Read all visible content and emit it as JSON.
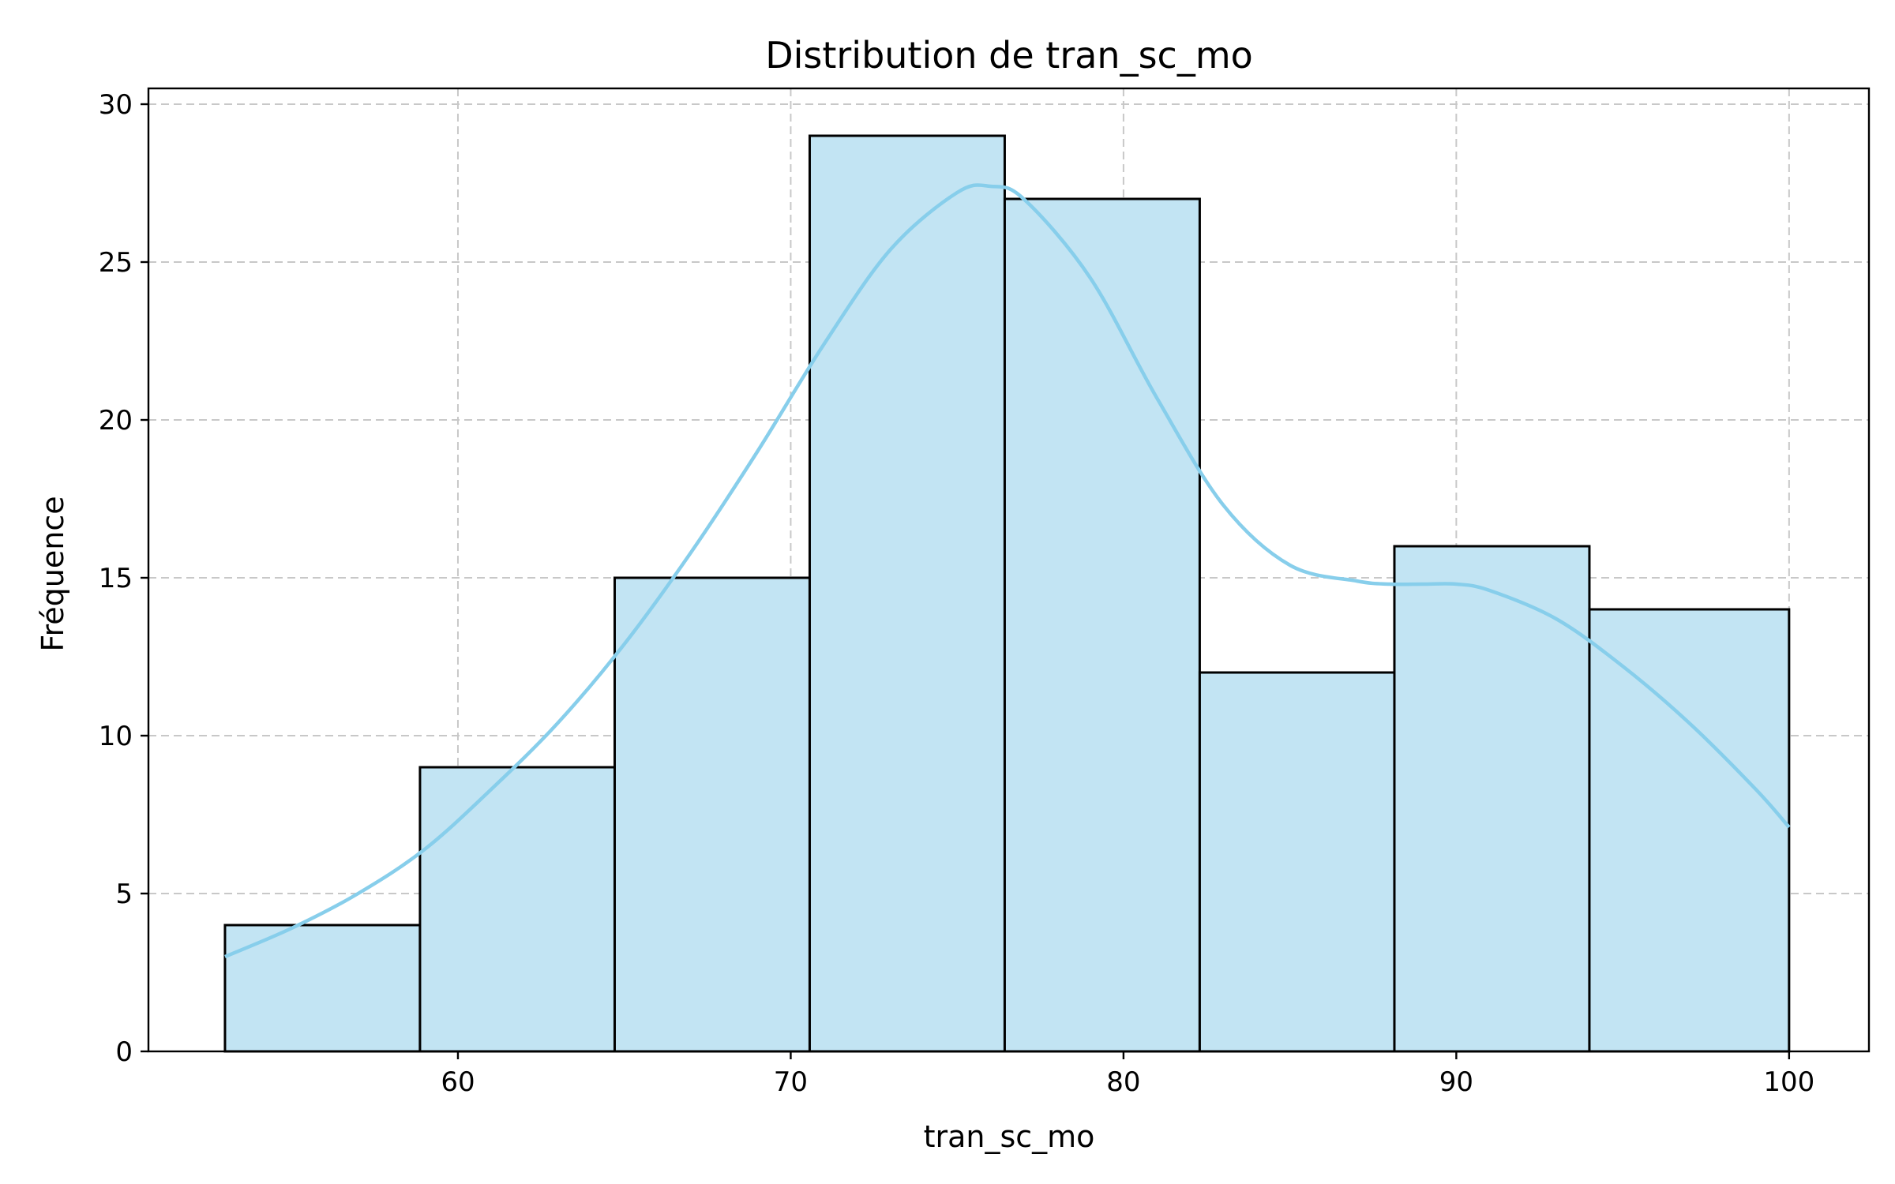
{
  "chart_data": {
    "type": "bar",
    "subtype": "histogram",
    "title": "Distribution de tran_sc_mo",
    "xlabel": "tran_sc_mo",
    "ylabel": "Fréquence",
    "xlim": [
      50.7,
      102.4
    ],
    "ylim": [
      0,
      30.5
    ],
    "xticks": [
      60,
      70,
      80,
      90,
      100
    ],
    "yticks": [
      0,
      5,
      10,
      15,
      20,
      25,
      30
    ],
    "grid": true,
    "bins": [
      {
        "start": 53.0,
        "end": 58.86,
        "value": 4
      },
      {
        "start": 58.86,
        "end": 64.71,
        "value": 9
      },
      {
        "start": 64.71,
        "end": 70.57,
        "value": 15
      },
      {
        "start": 70.57,
        "end": 76.43,
        "value": 29
      },
      {
        "start": 76.43,
        "end": 82.29,
        "value": 27
      },
      {
        "start": 82.29,
        "end": 88.14,
        "value": 12
      },
      {
        "start": 88.14,
        "end": 94.0,
        "value": 16
      },
      {
        "start": 94.0,
        "end": 100.0,
        "value": 14
      }
    ],
    "kde": {
      "x": [
        53,
        55,
        57,
        59,
        61,
        63,
        65,
        67,
        69,
        71,
        73,
        75,
        76,
        77,
        79,
        81,
        83,
        85,
        87,
        88,
        89,
        90,
        91,
        93,
        95,
        97,
        99,
        100
      ],
      "y": [
        3.0,
        3.9,
        5.0,
        6.4,
        8.3,
        10.4,
        12.9,
        15.8,
        19.0,
        22.4,
        25.4,
        27.2,
        27.4,
        27.0,
        24.5,
        20.7,
        17.3,
        15.4,
        14.9,
        14.8,
        14.8,
        14.8,
        14.6,
        13.7,
        12.2,
        10.4,
        8.3,
        7.1
      ]
    },
    "colors": {
      "bar_fill": "#c2e4f3",
      "bar_edge": "#000000",
      "kde_line": "#87ceeb",
      "grid": "#c8c8c8"
    }
  }
}
